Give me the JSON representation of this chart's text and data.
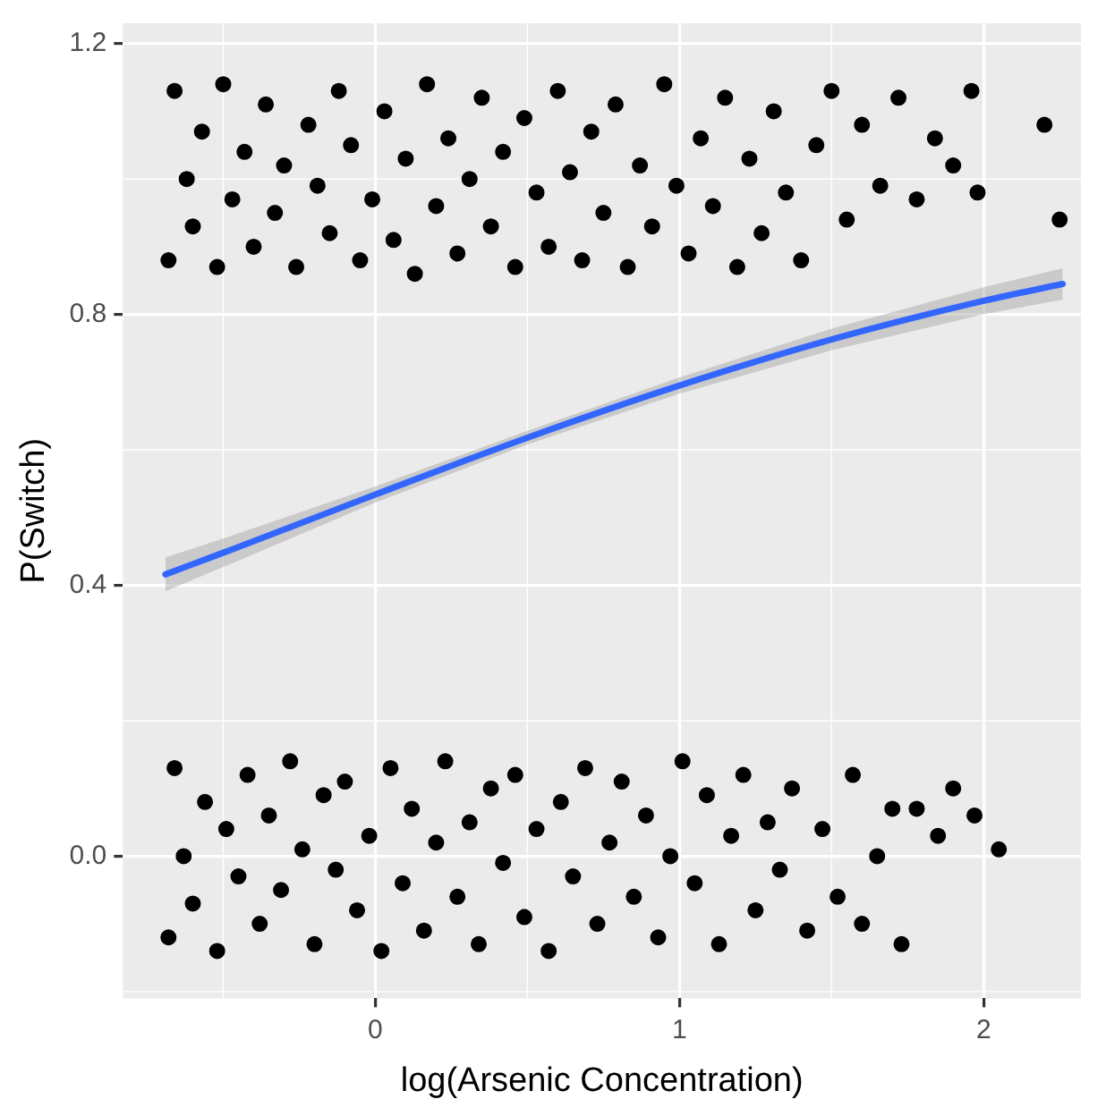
{
  "chart_data": {
    "type": "scatter",
    "xlabel": "log(Arsenic Concentration)",
    "ylabel": "P(Switch)",
    "xlim": [
      -0.83,
      2.32
    ],
    "ylim": [
      -0.21,
      1.23
    ],
    "xticks": [
      0,
      1,
      2
    ],
    "yticks": [
      {
        "value": 0,
        "label": "0.0"
      },
      0.4,
      0.8,
      1.2
    ],
    "grid": true,
    "legend": false,
    "series": [
      {
        "marker": "circle",
        "color": "#000000",
        "x": [
          -0.68,
          -0.66,
          -0.62,
          -0.6,
          -0.57,
          -0.52,
          -0.5,
          -0.47,
          -0.43,
          -0.4,
          -0.36,
          -0.33,
          -0.3,
          -0.26,
          -0.22,
          -0.19,
          -0.15,
          -0.12,
          -0.08,
          -0.05,
          -0.01,
          0.03,
          0.06,
          0.1,
          0.13,
          0.17,
          0.2,
          0.24,
          0.27,
          0.31,
          0.35,
          0.38,
          0.42,
          0.46,
          0.49,
          0.53,
          0.57,
          0.6,
          0.64,
          0.68,
          0.71,
          0.75,
          0.79,
          0.83,
          0.87,
          0.91,
          0.95,
          0.99,
          1.03,
          1.07,
          1.11,
          1.15,
          1.19,
          1.23,
          1.27,
          1.31,
          1.35,
          1.4,
          1.45,
          1.5,
          1.55,
          1.6,
          1.66,
          1.72,
          1.78,
          1.84,
          1.9,
          1.96,
          1.98,
          2.2,
          2.25
        ],
        "values": [
          0.88,
          1.13,
          1.0,
          0.93,
          1.07,
          0.87,
          1.14,
          0.97,
          1.04,
          0.9,
          1.11,
          0.95,
          1.02,
          0.87,
          1.08,
          0.99,
          0.92,
          1.13,
          1.05,
          0.88,
          0.97,
          1.1,
          0.91,
          1.03,
          0.86,
          1.14,
          0.96,
          1.06,
          0.89,
          1.0,
          1.12,
          0.93,
          1.04,
          0.87,
          1.09,
          0.98,
          0.9,
          1.13,
          1.01,
          0.88,
          1.07,
          0.95,
          1.11,
          0.87,
          1.02,
          0.93,
          1.14,
          0.99,
          0.89,
          1.06,
          0.96,
          1.12,
          0.87,
          1.03,
          0.92,
          1.1,
          0.98,
          0.88,
          1.05,
          1.13,
          0.94,
          1.08,
          0.99,
          1.12,
          0.97,
          1.06,
          1.02,
          1.13,
          0.98,
          1.08,
          0.94
        ]
      },
      {
        "marker": "circle",
        "color": "#000000",
        "x": [
          -0.68,
          -0.66,
          -0.63,
          -0.6,
          -0.56,
          -0.52,
          -0.49,
          -0.45,
          -0.42,
          -0.38,
          -0.35,
          -0.31,
          -0.28,
          -0.24,
          -0.2,
          -0.17,
          -0.13,
          -0.1,
          -0.06,
          -0.02,
          0.02,
          0.05,
          0.09,
          0.12,
          0.16,
          0.2,
          0.23,
          0.27,
          0.31,
          0.34,
          0.38,
          0.42,
          0.46,
          0.49,
          0.53,
          0.57,
          0.61,
          0.65,
          0.69,
          0.73,
          0.77,
          0.81,
          0.85,
          0.89,
          0.93,
          0.97,
          1.01,
          1.05,
          1.09,
          1.13,
          1.17,
          1.21,
          1.25,
          1.29,
          1.33,
          1.37,
          1.42,
          1.47,
          1.52,
          1.57,
          1.6,
          1.65,
          1.7,
          1.73,
          1.78,
          1.85,
          1.9,
          1.97,
          2.05
        ],
        "values": [
          -0.12,
          0.13,
          0.0,
          -0.07,
          0.08,
          -0.14,
          0.04,
          -0.03,
          0.12,
          -0.1,
          0.06,
          -0.05,
          0.14,
          0.01,
          -0.13,
          0.09,
          -0.02,
          0.11,
          -0.08,
          0.03,
          -0.14,
          0.13,
          -0.04,
          0.07,
          -0.11,
          0.02,
          0.14,
          -0.06,
          0.05,
          -0.13,
          0.1,
          -0.01,
          0.12,
          -0.09,
          0.04,
          -0.14,
          0.08,
          -0.03,
          0.13,
          -0.1,
          0.02,
          0.11,
          -0.06,
          0.06,
          -0.12,
          0.0,
          0.14,
          -0.04,
          0.09,
          -0.13,
          0.03,
          0.12,
          -0.08,
          0.05,
          -0.02,
          0.1,
          -0.11,
          0.04,
          -0.06,
          0.12,
          -0.1,
          0.0,
          0.07,
          -0.13,
          0.07,
          0.03,
          0.1,
          0.06,
          0.01
        ]
      },
      {
        "type": "line",
        "color": "#3366ff",
        "x": [
          -0.69,
          -0.5,
          0,
          0.5,
          1,
          1.5,
          2,
          2.26
        ],
        "values": [
          0.416,
          0.448,
          0.534,
          0.618,
          0.695,
          0.763,
          0.82,
          0.845
        ],
        "lower": [
          0.391,
          0.427,
          0.522,
          0.608,
          0.683,
          0.747,
          0.8,
          0.822
        ],
        "upper": [
          0.441,
          0.469,
          0.546,
          0.628,
          0.707,
          0.779,
          0.84,
          0.868
        ]
      }
    ]
  }
}
